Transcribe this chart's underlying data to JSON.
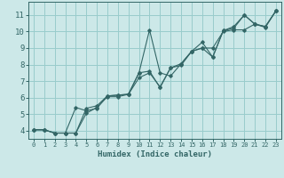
{
  "xlabel": "Humidex (Indice chaleur)",
  "ylabel": "",
  "xlim": [
    -0.5,
    23.5
  ],
  "ylim": [
    3.5,
    11.8
  ],
  "xticks": [
    0,
    1,
    2,
    3,
    4,
    5,
    6,
    7,
    8,
    9,
    10,
    11,
    12,
    13,
    14,
    15,
    16,
    17,
    18,
    19,
    20,
    21,
    22,
    23
  ],
  "yticks": [
    4,
    5,
    6,
    7,
    8,
    9,
    10,
    11
  ],
  "bg_color": "#cce8e8",
  "grid_color": "#99cccc",
  "line_color": "#336666",
  "lines": [
    {
      "x": [
        0,
        1,
        2,
        3,
        4,
        5,
        6,
        7,
        8,
        9,
        10,
        11,
        12,
        13,
        14,
        15,
        16,
        17,
        18,
        19,
        20,
        21,
        22,
        23
      ],
      "y": [
        4.05,
        4.05,
        3.85,
        3.85,
        3.85,
        5.35,
        5.5,
        6.1,
        6.15,
        6.2,
        7.5,
        10.1,
        7.5,
        7.3,
        8.05,
        8.8,
        9.35,
        8.45,
        10.05,
        10.3,
        11.0,
        10.45,
        10.3,
        11.25
      ]
    },
    {
      "x": [
        0,
        1,
        2,
        3,
        4,
        5,
        6,
        7,
        8,
        9,
        10,
        11,
        12,
        13,
        14,
        15,
        16,
        17,
        18,
        19,
        20,
        21,
        22,
        23
      ],
      "y": [
        4.05,
        4.05,
        3.85,
        3.85,
        5.4,
        5.2,
        5.35,
        6.1,
        6.15,
        6.2,
        7.5,
        7.6,
        6.6,
        7.8,
        8.05,
        8.8,
        9.0,
        8.45,
        10.05,
        10.2,
        11.0,
        10.45,
        10.3,
        11.25
      ]
    },
    {
      "x": [
        0,
        1,
        2,
        3,
        4,
        5,
        6,
        7,
        8,
        9,
        10,
        11,
        12,
        13,
        14,
        15,
        16,
        17,
        18,
        19,
        20,
        21,
        22,
        23
      ],
      "y": [
        4.05,
        4.05,
        3.85,
        3.85,
        3.85,
        5.05,
        5.4,
        6.05,
        6.05,
        6.2,
        7.2,
        7.5,
        6.65,
        7.8,
        7.95,
        8.8,
        9.0,
        9.0,
        10.0,
        10.1,
        10.1,
        10.45,
        10.25,
        11.25
      ]
    }
  ]
}
